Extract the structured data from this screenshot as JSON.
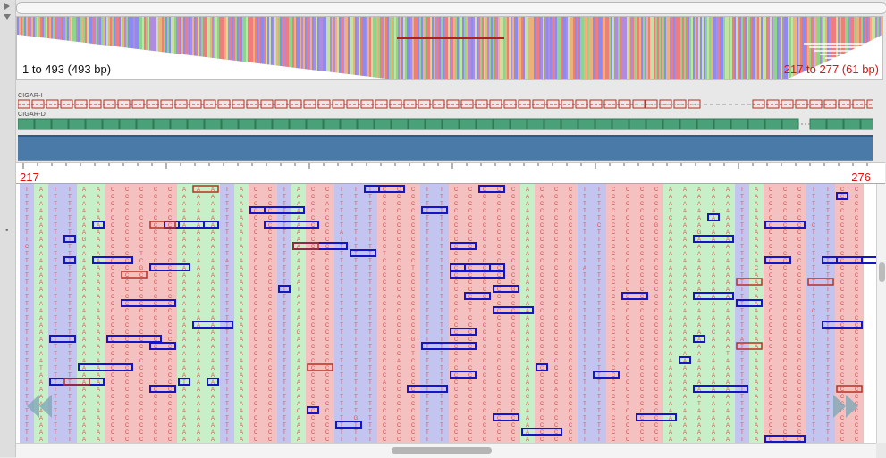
{
  "overview": {
    "range_label": "1 to 493 (493 bp)",
    "view_label": "217 to 277 (61 bp)"
  },
  "tracks": {
    "insertions_label": "CIGAR-I",
    "deletions_label": "CIGAR-D"
  },
  "ruler": {
    "start": "217",
    "end": "276"
  },
  "colors": {
    "A": "#c8f0c8",
    "C": "#f4c0c0",
    "G": "#f8dcc0",
    "T": "#c4c4f0",
    "base_text": "#d85050",
    "selection_box": "#1414c8",
    "deletion_box": "#b83020",
    "insertion_track": "#b83020",
    "deletion_track": "#4aa078",
    "coverage": "#4a7aa8",
    "overview_accent": "#e21010"
  },
  "reference_bases": "TATTAACCCCCAAATACCTACCTTTCCCTTCCCCCACCCTTCCCCAAAAATACCCTTCC",
  "icons": {
    "scroll_left": "double-chevron-left-icon",
    "scroll_right": "double-chevron-right-icon",
    "expand": "triangle-right-icon",
    "collapse": "triangle-down-icon"
  }
}
